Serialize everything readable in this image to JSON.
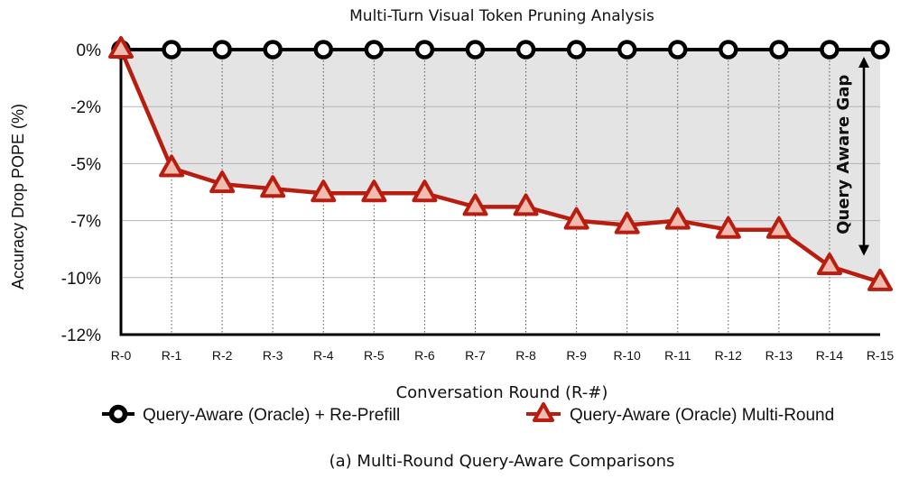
{
  "chart_data": {
    "type": "line",
    "title": "Multi-Turn Visual Token Pruning Analysis",
    "xlabel": "Conversation Round (R-#)",
    "ylabel": "Accuracy Drop POPE (%)",
    "categories": [
      "R-0",
      "R-1",
      "R-2",
      "R-3",
      "R-4",
      "R-5",
      "R-6",
      "R-7",
      "R-8",
      "R-9",
      "R-10",
      "R-11",
      "R-12",
      "R-13",
      "R-14",
      "R-15"
    ],
    "yticks": [
      0,
      -2.5,
      -5,
      -7.5,
      -10,
      -12.5
    ],
    "ytick_labels": [
      "0%",
      "-2%",
      "-5%",
      "-7%",
      "-10%",
      "-12%"
    ],
    "ylim": [
      -12.5,
      0
    ],
    "grid": true,
    "series": [
      {
        "name": "Query-Aware (Oracle) + Re-Prefill",
        "marker": "circle",
        "color": "#000000",
        "values": [
          0,
          0,
          0,
          0,
          0,
          0,
          0,
          0,
          0,
          0,
          0,
          0,
          0,
          0,
          0,
          0
        ]
      },
      {
        "name": "Query-Aware (Oracle) Multi-Round",
        "marker": "triangle",
        "color": "#b81d10",
        "values": [
          0,
          -5.2,
          -5.9,
          -6.1,
          -6.3,
          -6.3,
          -6.3,
          -6.9,
          -6.9,
          -7.5,
          -7.7,
          -7.5,
          -7.9,
          -7.9,
          -9.5,
          -10.2
        ]
      }
    ],
    "annotation": "Query Aware Gap",
    "legend_position": "bottom",
    "caption": "(a) Multi-Round Query-Aware Comparisons"
  }
}
